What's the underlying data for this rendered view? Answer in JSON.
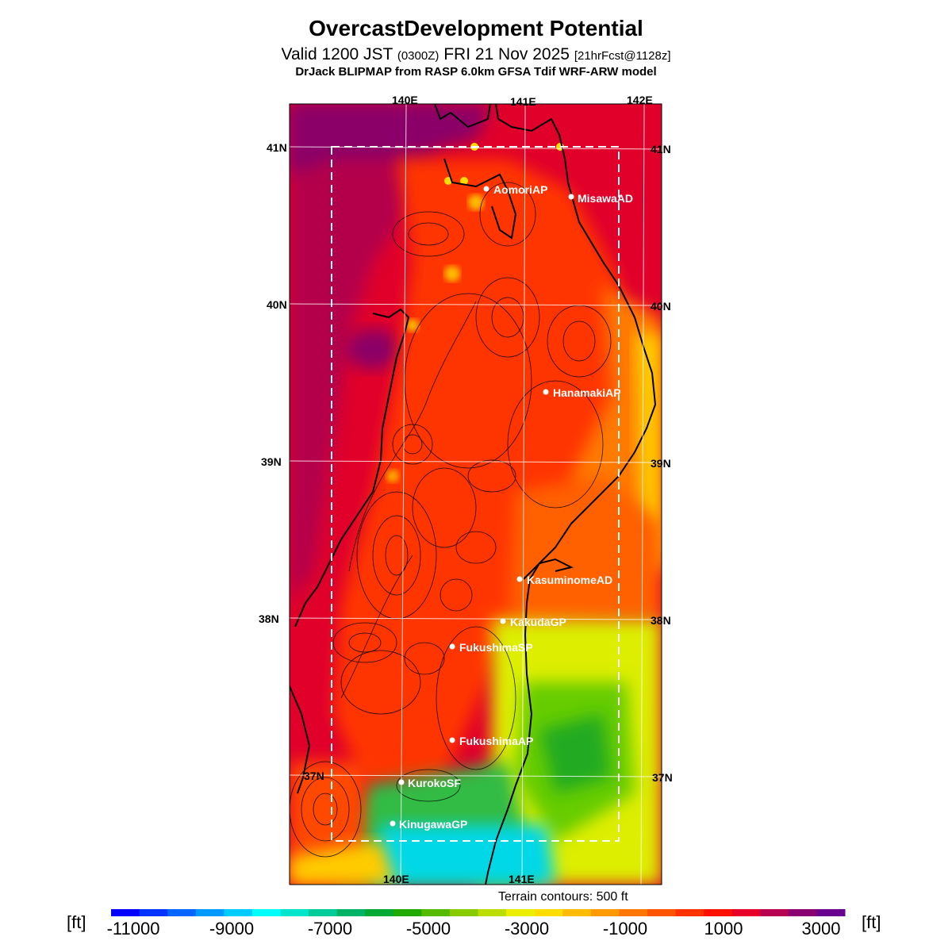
{
  "header": {
    "title": "OvercastDevelopment Potential",
    "valid_main": "Valid 1200 JST",
    "valid_utc": "(0300Z)",
    "valid_date": "FRI 21 Nov 2025",
    "forecast_tag": "[21hrFcst@1128z]",
    "model": "DrJack BLIPMAP from RASP 6.0km GFSA Tdif WRF-ARW model"
  },
  "map": {
    "lon_labels_top": [
      "140E",
      "141E",
      "142E"
    ],
    "lon_labels_bottom": [
      "140E",
      "141E"
    ],
    "lat_labels_left": [
      "41N",
      "40N",
      "39N",
      "38N",
      "37N"
    ],
    "lat_labels_right": [
      "41N",
      "40N",
      "39N",
      "38N",
      "37N"
    ],
    "stations": [
      {
        "name": "AomoriAP"
      },
      {
        "name": "MisawaAD"
      },
      {
        "name": "HanamakiAP"
      },
      {
        "name": "KasuminomeAD"
      },
      {
        "name": "KakudaGP"
      },
      {
        "name": "FukushimaSP"
      },
      {
        "name": "FukushimaAP"
      },
      {
        "name": "KurokoSF"
      },
      {
        "name": "KinugawaGP"
      }
    ],
    "terrain_note": "Terrain contours: 500 ft"
  },
  "colorbar": {
    "unit": "[ft]",
    "tick_labels": [
      "-11000",
      "-9000",
      "-7000",
      "-5000",
      "-3000",
      "-1000",
      "1000",
      "3000"
    ],
    "colors": [
      "#0000ff",
      "#0033ff",
      "#0066ff",
      "#0099ff",
      "#00ccff",
      "#00ffff",
      "#00e5cc",
      "#00cc99",
      "#00b366",
      "#00aa33",
      "#22aa00",
      "#55bb00",
      "#88cc00",
      "#bbdd00",
      "#eeee00",
      "#ffdd00",
      "#ffbb00",
      "#ff9900",
      "#ff7700",
      "#ff5500",
      "#ff3300",
      "#ff1100",
      "#e6002a",
      "#b80050",
      "#8a0070",
      "#6a0090"
    ]
  }
}
